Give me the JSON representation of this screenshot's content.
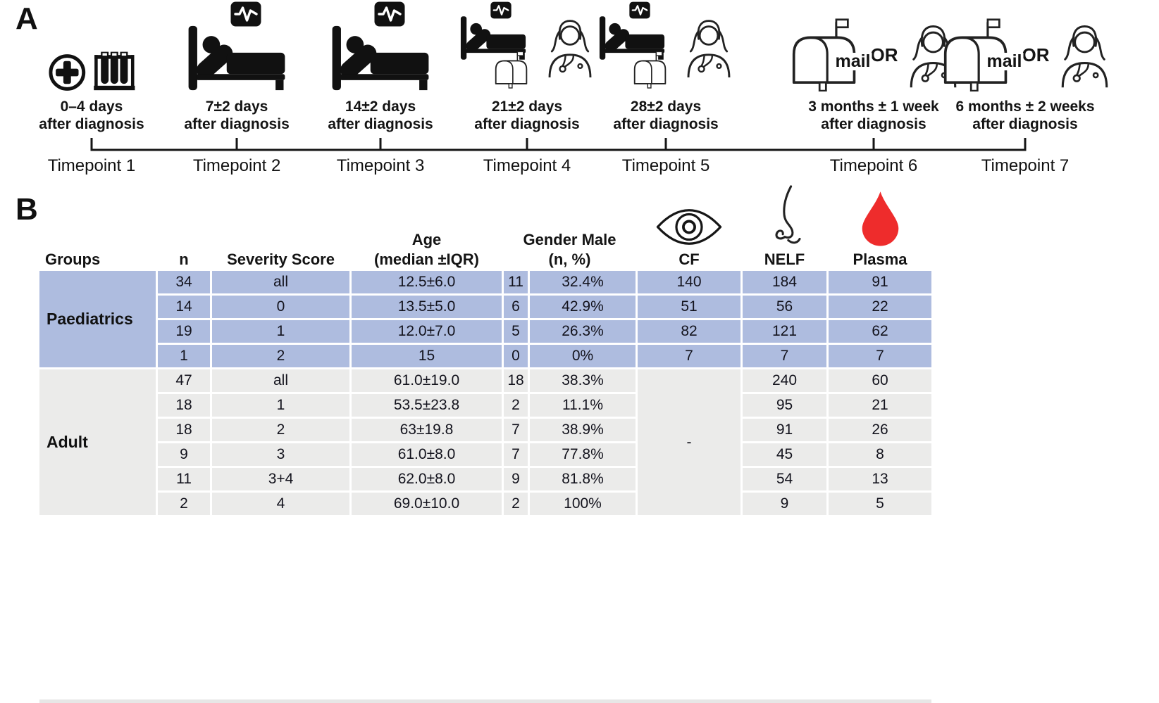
{
  "panel_a": {
    "label": "A",
    "or_label": "OR",
    "mail_label": "mail",
    "timepoints": [
      {
        "caption1": "0–4 days",
        "caption2": "after diagnosis",
        "label": "Timepoint 1"
      },
      {
        "caption1": "7±2 days",
        "caption2": "after diagnosis",
        "label": "Timepoint 2"
      },
      {
        "caption1": "14±2 days",
        "caption2": "after diagnosis",
        "label": "Timepoint 3"
      },
      {
        "caption1": "21±2 days",
        "caption2": "after diagnosis",
        "label": "Timepoint 4"
      },
      {
        "caption1": "28±2 days",
        "caption2": "after diagnosis",
        "label": "Timepoint 5"
      },
      {
        "caption1": "3 months ± 1 week",
        "caption2": "after diagnosis",
        "label": "Timepoint 6"
      },
      {
        "caption1": "6 months ± 2 weeks",
        "caption2": "after diagnosis",
        "label": "Timepoint 7"
      }
    ]
  },
  "panel_b": {
    "label": "B",
    "colors": {
      "paediatrics_row": "#aebcdf",
      "adult_row": "#ebebea",
      "blood_drop": "#ee2c2c"
    },
    "table": {
      "headers": {
        "groups": "Groups",
        "n": "n",
        "severity": "Severity Score",
        "age1": "Age",
        "age2": "(median ±IQR)",
        "gender1": "Gender Male",
        "gender2": "(n, %)",
        "cf": "CF",
        "nelf": "NELF",
        "plasma": "Plasma"
      },
      "groups": [
        {
          "name": "Paediatrics",
          "rows": [
            {
              "n": "34",
              "severity": "all",
              "age": "12.5±6.0",
              "male_n": "11",
              "male_pct": "32.4%",
              "cf": "140",
              "nelf": "184",
              "plasma": "91"
            },
            {
              "n": "14",
              "severity": "0",
              "age": "13.5±5.0",
              "male_n": "6",
              "male_pct": "42.9%",
              "cf": "51",
              "nelf": "56",
              "plasma": "22"
            },
            {
              "n": "19",
              "severity": "1",
              "age": "12.0±7.0",
              "male_n": "5",
              "male_pct": "26.3%",
              "cf": "82",
              "nelf": "121",
              "plasma": "62"
            },
            {
              "n": "1",
              "severity": "2",
              "age": "15",
              "male_n": "0",
              "male_pct": "0%",
              "cf": "7",
              "nelf": "7",
              "plasma": "7"
            }
          ]
        },
        {
          "name": "Adult",
          "cf_merged": "-",
          "rows": [
            {
              "n": "47",
              "severity": "all",
              "age": "61.0±19.0",
              "male_n": "18",
              "male_pct": "38.3%",
              "nelf": "240",
              "plasma": "60"
            },
            {
              "n": "18",
              "severity": "1",
              "age": "53.5±23.8",
              "male_n": "2",
              "male_pct": "11.1%",
              "nelf": "95",
              "plasma": "21"
            },
            {
              "n": "18",
              "severity": "2",
              "age": "63±19.8",
              "male_n": "7",
              "male_pct": "38.9%",
              "nelf": "91",
              "plasma": "26"
            },
            {
              "n": "9",
              "severity": "3",
              "age": "61.0±8.0",
              "male_n": "7",
              "male_pct": "77.8%",
              "nelf": "45",
              "plasma": "8"
            },
            {
              "n": "11",
              "severity": "3+4",
              "age": "62.0±8.0",
              "male_n": "9",
              "male_pct": "81.8%",
              "nelf": "54",
              "plasma": "13"
            },
            {
              "n": "2",
              "severity": "4",
              "age": "69.0±10.0",
              "male_n": "2",
              "male_pct": "100%",
              "nelf": "9",
              "plasma": "5"
            }
          ]
        }
      ]
    }
  }
}
